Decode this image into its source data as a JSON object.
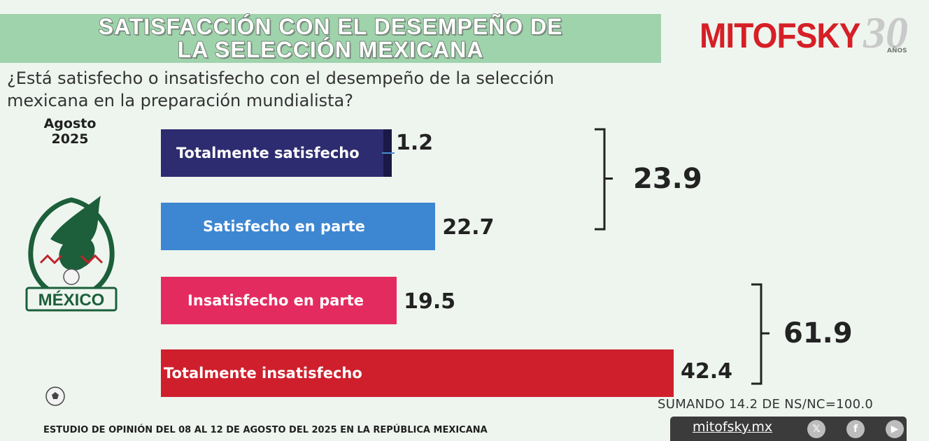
{
  "header": {
    "title_line1": "SATISFACCIÓN CON EL DESEMPEÑO DE",
    "title_line2": "LA SELECCIÓN MEXICANA",
    "brand": "MITOFSKY",
    "brand_anniversary": "30",
    "brand_anniversary_suffix": "AÑOS"
  },
  "question": "¿Está satisfecho o insatisfecho con el desempeño de la selección mexicana en la preparación mundialista?",
  "period": {
    "line1": "Agosto",
    "line2": "2025"
  },
  "team_logo_text": "MÉXICO",
  "chart_data": {
    "type": "bar",
    "orientation": "horizontal",
    "categories": [
      "Totalmente satisfecho",
      "Satisfecho en parte",
      "Insatisfecho en parte",
      "Totalmente insatisfecho"
    ],
    "values": [
      1.2,
      22.7,
      19.5,
      42.4
    ],
    "value_labels": [
      "1.2",
      "22.7",
      "19.5",
      "42.4"
    ],
    "colors": [
      "#2e2c70",
      "#3d86d1",
      "#e42b5f",
      "#cf1f2c"
    ],
    "xlim": [
      0,
      42.4
    ],
    "groups": [
      {
        "members": [
          0,
          1
        ],
        "total": 23.9,
        "total_label": "23.9"
      },
      {
        "members": [
          2,
          3
        ],
        "total": 61.9,
        "total_label": "61.9"
      }
    ],
    "grid": false,
    "legend": "none"
  },
  "note": "SUMANDO 14.2 DE NS/NC=100.0",
  "footer": "ESTUDIO DE OPINIÓN DEL 08 AL 12 DE AGOSTO DEL 2025 EN LA REPÚBLICA MEXICANA",
  "social": {
    "url": "mitofsky.mx",
    "icons": [
      "x-icon",
      "facebook-icon",
      "youtube-icon"
    ],
    "icon_glyphs": [
      "𝕏",
      "f",
      "▶"
    ]
  }
}
